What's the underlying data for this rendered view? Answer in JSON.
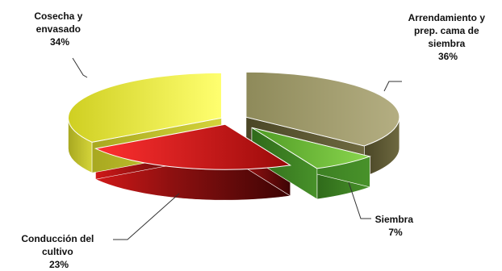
{
  "chart_data": {
    "type": "pie",
    "title": "",
    "style": "3d-exploded",
    "slices": [
      {
        "label": "Arrendamiento y prep. cama de siembra",
        "label_lines": [
          "Arrendamiento y",
          "prep. cama de",
          "siembra"
        ],
        "value": 36,
        "value_label": "36%",
        "color": "#9c9766"
      },
      {
        "label": "Siembra",
        "label_lines": [
          "Siembra"
        ],
        "value": 7,
        "value_label": "7%",
        "color": "#6ec43a"
      },
      {
        "label": "Conducción del cultivo",
        "label_lines": [
          "Conducción del",
          "cultivo"
        ],
        "value": 23,
        "value_label": "23%",
        "color": "#e01a1a"
      },
      {
        "label": "Cosecha y envasado",
        "label_lines": [
          "Cosecha y",
          "envasado"
        ],
        "value": 34,
        "value_label": "34%",
        "color": "#e6e63a"
      }
    ]
  }
}
